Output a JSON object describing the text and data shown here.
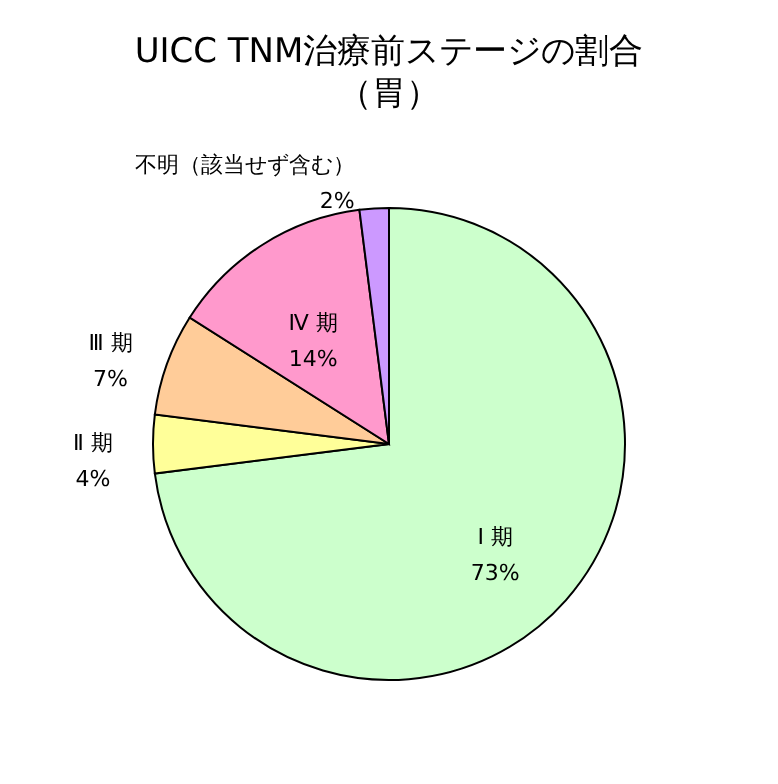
{
  "chart_data": {
    "type": "pie",
    "title": "UICC TNM治療前ステージの割合",
    "subtitle": "（胃）",
    "categories": [
      "Ⅰ 期",
      "Ⅱ 期",
      "Ⅲ 期",
      "Ⅳ 期",
      "不明（該当せず含む）"
    ],
    "values": [
      73,
      4,
      7,
      14,
      2
    ],
    "colors": [
      "#ccffcc",
      "#ffff99",
      "#ffcc99",
      "#ff99cc",
      "#cc99ff"
    ],
    "value_labels": [
      "73%",
      "4%",
      "7%",
      "14%",
      "2%"
    ],
    "legend": false
  }
}
